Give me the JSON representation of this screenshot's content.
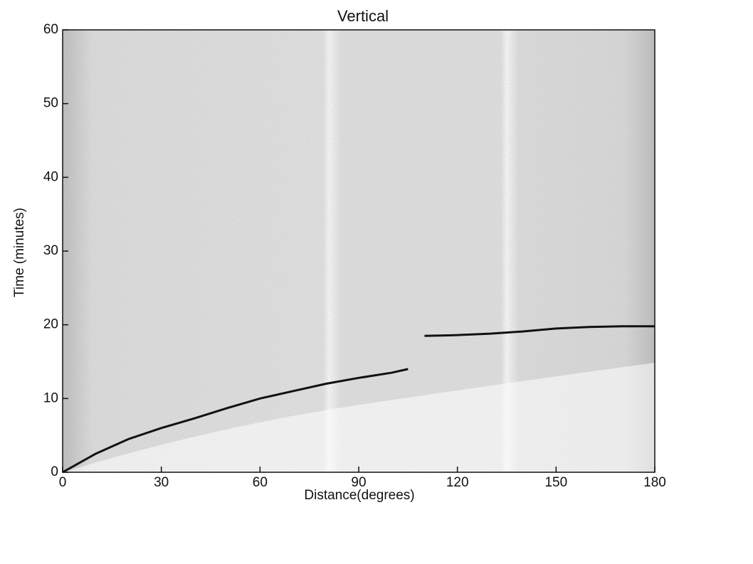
{
  "chart_data": {
    "type": "line",
    "title": "Vertical",
    "x_label": "Distance(degrees)",
    "y_label": "Time (minutes)",
    "xlim": [
      0,
      180
    ],
    "xticks": [
      0,
      30,
      60,
      90,
      120,
      150,
      180
    ],
    "ylim": [
      0,
      60
    ],
    "yticks": [
      0,
      10,
      20,
      30,
      40,
      50,
      60
    ],
    "x": [
      0,
      10,
      20,
      30,
      40,
      50,
      60,
      70,
      80,
      90,
      100,
      105,
      110,
      120,
      130,
      140,
      150,
      160,
      170,
      180
    ],
    "series": [
      {
        "color": "#111111",
        "values": [
          0,
          2.5,
          4.5,
          6,
          7.3,
          8.7,
          10,
          11,
          12,
          12.8,
          13.5,
          14,
          null,
          null,
          null,
          null,
          null,
          null,
          null,
          null
        ]
      },
      {
        "color": "#111111",
        "values": [
          null,
          null,
          null,
          null,
          null,
          null,
          null,
          null,
          null,
          null,
          null,
          null,
          18.5,
          18.6,
          18.8,
          19.1,
          19.5,
          19.7,
          19.8,
          19.8
        ]
      }
    ]
  }
}
